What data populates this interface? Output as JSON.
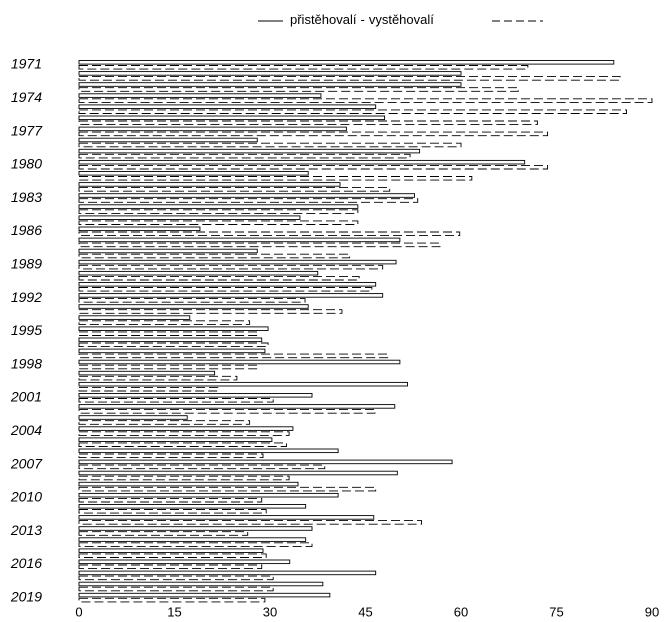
{
  "chart_data": {
    "type": "hbar",
    "categories": [
      "1971",
      null,
      null,
      "1974",
      null,
      null,
      "1977",
      null,
      null,
      "1980",
      null,
      null,
      "1983",
      null,
      null,
      "1986",
      null,
      null,
      "1989",
      null,
      null,
      "1992",
      null,
      null,
      "1995",
      null,
      null,
      "1998",
      null,
      null,
      "2001",
      null,
      null,
      "2004",
      null,
      null,
      "2007",
      null,
      null,
      "2010",
      null,
      null,
      "2013",
      null,
      null,
      "2016",
      null,
      null,
      "2019"
    ],
    "legend_separator": "-",
    "series": [
      {
        "name": "přistěhovalí",
        "color": "#000000",
        "dash": "solid",
        "values": [
          84,
          60,
          60,
          38,
          46.6,
          48,
          42,
          28,
          53.5,
          70,
          36,
          41,
          52.7,
          43.8,
          34.7,
          19,
          50.4,
          28,
          49.8,
          37.5,
          46.6,
          47.7,
          36,
          17.4,
          29.7,
          28.7,
          29.2,
          50.4,
          21.3,
          51.6,
          36.6,
          49.6,
          17,
          33.6,
          30.3,
          40.7,
          58.6,
          50,
          34.4,
          40.7,
          35.6,
          46.3,
          36.6,
          35.6,
          28.9,
          33.1,
          46.6,
          38.3,
          39.4
        ]
      },
      {
        "name": "vystěhovalí",
        "color": "#000000",
        "dash": "dashed",
        "values": [
          70.5,
          85,
          69,
          90,
          86,
          72,
          73.6,
          60,
          52,
          73.6,
          61.7,
          48.8,
          53.2,
          43.8,
          43.8,
          59.8,
          56.7,
          42.5,
          47.7,
          44,
          46,
          35.5,
          41.3,
          26.8,
          28,
          29.7,
          48.5,
          28,
          24.8,
          21.8,
          30.5,
          46.5,
          26.8,
          33,
          32.6,
          28.9,
          38.6,
          33,
          46.6,
          28.7,
          29.4,
          53.8,
          26.5,
          36.6,
          29.4,
          28.7,
          30.5,
          30.5,
          29.2
        ]
      }
    ],
    "xlim": [
      0,
      90
    ],
    "xticks": [
      0,
      15,
      30,
      45,
      60,
      75,
      90
    ],
    "grid": false
  }
}
